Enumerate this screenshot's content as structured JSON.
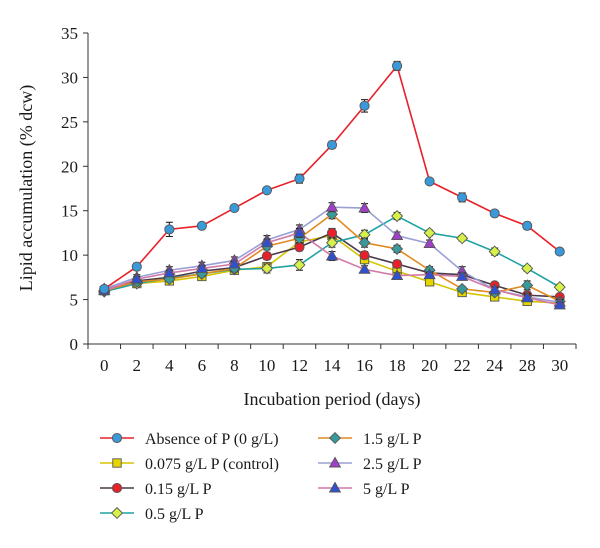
{
  "chart_data": {
    "type": "line",
    "title": "",
    "xlabel": "Incubation period (days)",
    "ylabel": "Lipid accumulation (% dcw)",
    "categories": [
      "0",
      "2",
      "4",
      "6",
      "8",
      "10",
      "12",
      "14",
      "16",
      "18",
      "20",
      "22",
      "24",
      "28",
      "30"
    ],
    "ylim": [
      0,
      35
    ],
    "yticks": [
      0,
      5,
      10,
      15,
      20,
      25,
      30,
      35
    ],
    "grid": false,
    "legend_position": "bottom",
    "series": [
      {
        "name": "Absence of P (0 g/L)",
        "color": "#e8202a",
        "marker": "circle",
        "marker_fill": "#3a9ad9",
        "values": [
          6.2,
          8.7,
          12.9,
          13.3,
          15.3,
          17.3,
          18.6,
          22.4,
          26.8,
          31.3,
          18.3,
          16.5,
          14.7,
          13.3,
          10.4
        ],
        "errors": [
          0.3,
          0.4,
          0.8,
          0.3,
          0.3,
          0.3,
          0.5,
          0.4,
          0.7,
          0.5,
          0.3,
          0.5,
          0.3,
          0.4,
          0.3
        ]
      },
      {
        "name": "0.075 g/L P (control)",
        "color": "#d6c400",
        "marker": "square",
        "marker_fill": "#e6d600",
        "values": [
          6.0,
          6.8,
          7.1,
          7.6,
          8.3,
          8.7,
          11.5,
          12.2,
          9.5,
          8.2,
          7.0,
          5.8,
          5.3,
          4.8,
          4.6
        ],
        "errors": [
          0.2,
          0.3,
          0.3,
          0.3,
          0.3,
          0.4,
          0.5,
          0.5,
          0.4,
          0.4,
          0.3,
          0.3,
          0.3,
          0.3,
          0.3
        ]
      },
      {
        "name": "0.15 g/L P",
        "color": "#4a3a4a",
        "marker": "circle",
        "marker_fill": "#e8202a",
        "values": [
          6.1,
          7.1,
          7.5,
          8.2,
          8.6,
          9.9,
          10.9,
          12.5,
          10.0,
          9.0,
          8.0,
          7.8,
          6.6,
          5.5,
          5.3
        ],
        "errors": [
          0.2,
          0.3,
          0.3,
          0.3,
          0.3,
          0.4,
          0.4,
          0.5,
          0.4,
          0.4,
          0.4,
          0.4,
          0.3,
          0.3,
          0.3
        ]
      },
      {
        "name": "0.5 g/L P",
        "color": "#1fa3a3",
        "marker": "diamond",
        "marker_fill": "#d8f04a",
        "values": [
          5.9,
          6.8,
          7.4,
          7.9,
          8.4,
          8.5,
          8.9,
          11.4,
          12.3,
          14.4,
          12.5,
          11.9,
          10.4,
          8.5,
          6.4
        ],
        "errors": [
          0.2,
          0.3,
          0.3,
          0.3,
          0.3,
          0.5,
          0.6,
          0.5,
          0.5,
          0.4,
          0.3,
          0.3,
          0.4,
          0.3,
          0.3
        ]
      },
      {
        "name": "1.5 g/L P",
        "color": "#e08a20",
        "marker": "diamond",
        "marker_fill": "#3a9a9a",
        "values": [
          6.0,
          7.0,
          7.3,
          7.9,
          8.5,
          11.0,
          11.9,
          14.6,
          11.4,
          10.7,
          8.3,
          6.2,
          5.8,
          6.6,
          4.8
        ],
        "errors": [
          0.2,
          0.3,
          0.3,
          0.3,
          0.3,
          0.4,
          0.5,
          0.5,
          0.5,
          0.4,
          0.4,
          0.3,
          0.3,
          0.5,
          0.3
        ]
      },
      {
        "name": "2.5 g/L P",
        "color": "#9aa0d6",
        "marker": "triangle",
        "marker_fill": "#a040c8",
        "values": [
          6.2,
          7.5,
          8.3,
          8.8,
          9.4,
          11.7,
          12.9,
          15.4,
          15.3,
          12.2,
          11.3,
          8.2,
          6.1,
          5.3,
          4.7
        ],
        "errors": [
          0.2,
          0.3,
          0.4,
          0.4,
          0.4,
          0.5,
          0.5,
          0.5,
          0.5,
          0.4,
          0.4,
          0.5,
          0.3,
          0.4,
          0.3
        ]
      },
      {
        "name": "5 g/L P",
        "color": "#d07aa8",
        "marker": "triangle",
        "marker_fill": "#3050d0",
        "values": [
          6.0,
          7.3,
          8.0,
          8.5,
          9.0,
          11.4,
          12.5,
          9.9,
          8.4,
          7.7,
          7.8,
          7.6,
          6.1,
          5.2,
          4.4
        ],
        "errors": [
          0.2,
          0.3,
          0.3,
          0.3,
          0.3,
          0.4,
          0.5,
          0.5,
          0.4,
          0.3,
          0.3,
          0.4,
          0.3,
          0.3,
          0.3
        ]
      }
    ]
  }
}
